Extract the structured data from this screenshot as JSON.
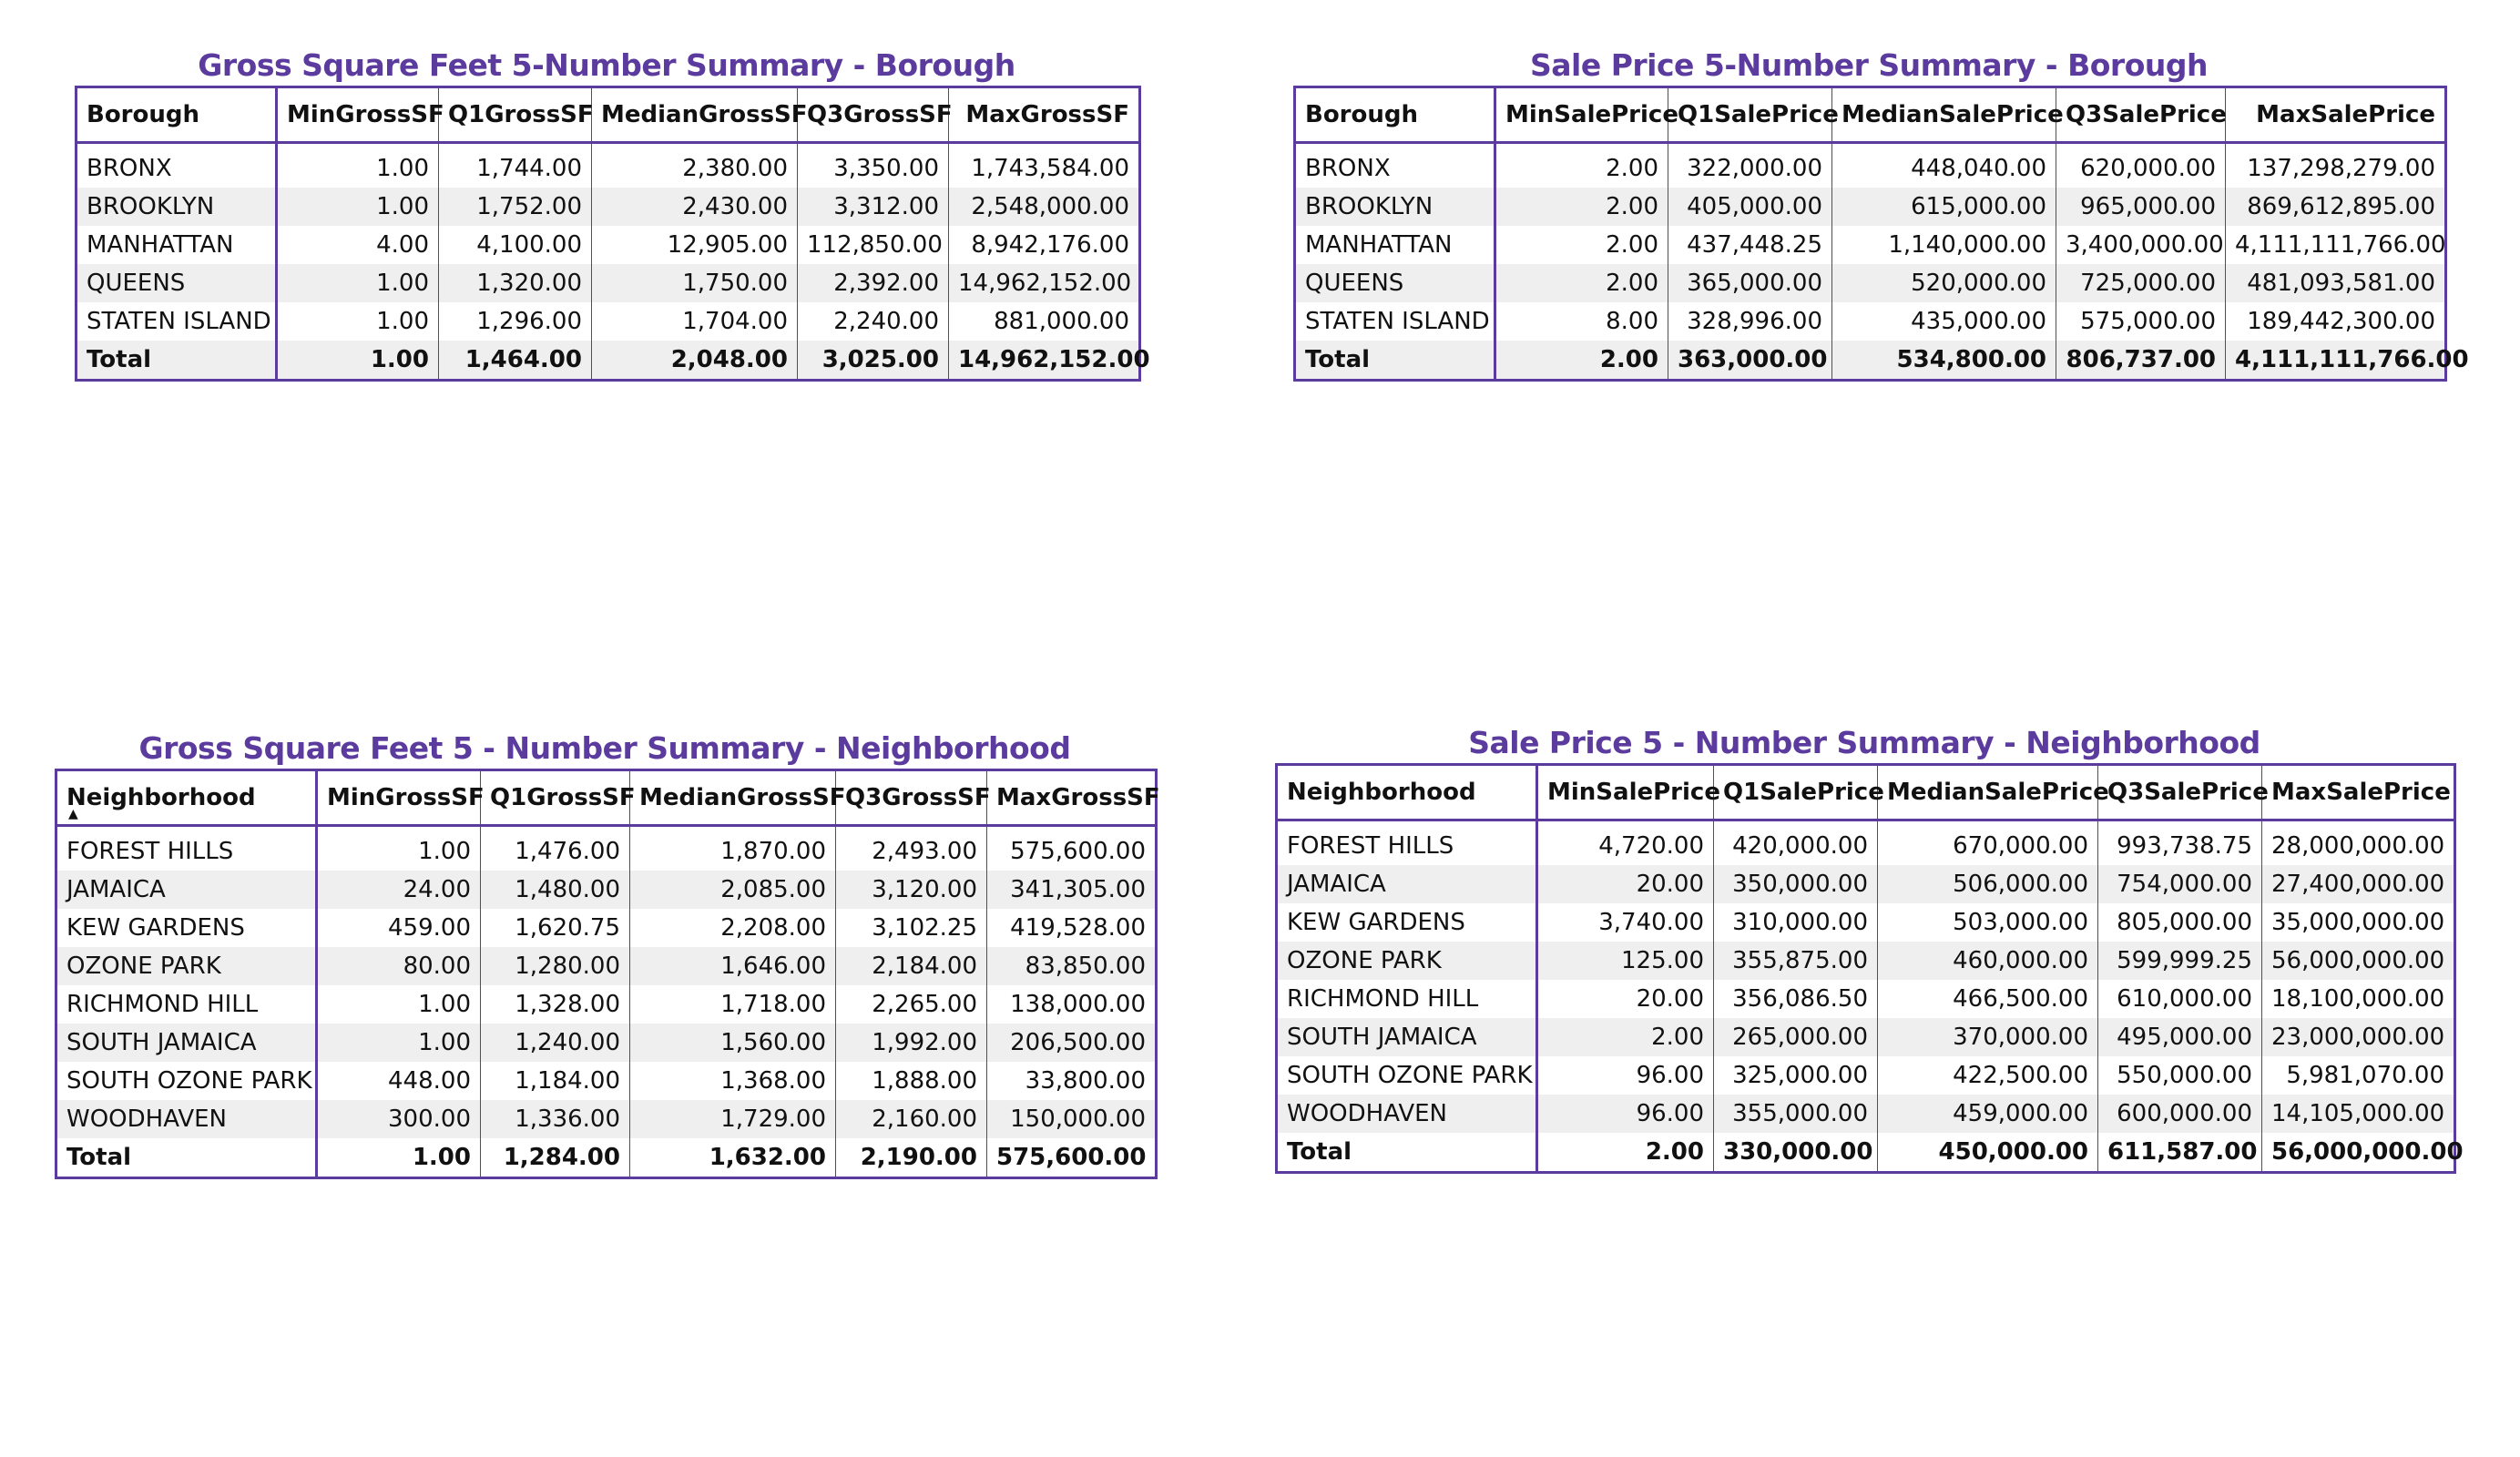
{
  "theme": {
    "accent": "#5b3b9e",
    "stripe": "#efefef"
  },
  "tables": {
    "gsf_borough": {
      "title": "Gross Square Feet 5-Number Summary - Borough",
      "headers": [
        "Borough",
        "MinGrossSF",
        "Q1GrossSF",
        "MedianGrossSF",
        "Q3GrossSF",
        "MaxGrossSF"
      ],
      "rows": [
        [
          "BRONX",
          "1.00",
          "1,744.00",
          "2,380.00",
          "3,350.00",
          "1,743,584.00"
        ],
        [
          "BROOKLYN",
          "1.00",
          "1,752.00",
          "2,430.00",
          "3,312.00",
          "2,548,000.00"
        ],
        [
          "MANHATTAN",
          "4.00",
          "4,100.00",
          "12,905.00",
          "112,850.00",
          "8,942,176.00"
        ],
        [
          "QUEENS",
          "1.00",
          "1,320.00",
          "1,750.00",
          "2,392.00",
          "14,962,152.00"
        ],
        [
          "STATEN ISLAND",
          "1.00",
          "1,296.00",
          "1,704.00",
          "2,240.00",
          "881,000.00"
        ]
      ],
      "total": [
        "Total",
        "1.00",
        "1,464.00",
        "2,048.00",
        "3,025.00",
        "14,962,152.00"
      ]
    },
    "price_borough": {
      "title": "Sale Price 5-Number Summary - Borough",
      "headers": [
        "Borough",
        "MinSalePrice",
        "Q1SalePrice",
        "MedianSalePrice",
        "Q3SalePrice",
        "MaxSalePrice"
      ],
      "rows": [
        [
          "BRONX",
          "2.00",
          "322,000.00",
          "448,040.00",
          "620,000.00",
          "137,298,279.00"
        ],
        [
          "BROOKLYN",
          "2.00",
          "405,000.00",
          "615,000.00",
          "965,000.00",
          "869,612,895.00"
        ],
        [
          "MANHATTAN",
          "2.00",
          "437,448.25",
          "1,140,000.00",
          "3,400,000.00",
          "4,111,111,766.00"
        ],
        [
          "QUEENS",
          "2.00",
          "365,000.00",
          "520,000.00",
          "725,000.00",
          "481,093,581.00"
        ],
        [
          "STATEN ISLAND",
          "8.00",
          "328,996.00",
          "435,000.00",
          "575,000.00",
          "189,442,300.00"
        ]
      ],
      "total": [
        "Total",
        "2.00",
        "363,000.00",
        "534,800.00",
        "806,737.00",
        "4,111,111,766.00"
      ]
    },
    "gsf_neighborhood": {
      "title": "Gross Square Feet 5 - Number Summary - Neighborhood",
      "headers": [
        "Neighborhood",
        "MinGrossSF",
        "Q1GrossSF",
        "MedianGrossSF",
        "Q3GrossSF",
        "MaxGrossSF"
      ],
      "sort_indicator": "▲",
      "rows": [
        [
          "FOREST HILLS",
          "1.00",
          "1,476.00",
          "1,870.00",
          "2,493.00",
          "575,600.00"
        ],
        [
          "JAMAICA",
          "24.00",
          "1,480.00",
          "2,085.00",
          "3,120.00",
          "341,305.00"
        ],
        [
          "KEW GARDENS",
          "459.00",
          "1,620.75",
          "2,208.00",
          "3,102.25",
          "419,528.00"
        ],
        [
          "OZONE PARK",
          "80.00",
          "1,280.00",
          "1,646.00",
          "2,184.00",
          "83,850.00"
        ],
        [
          "RICHMOND HILL",
          "1.00",
          "1,328.00",
          "1,718.00",
          "2,265.00",
          "138,000.00"
        ],
        [
          "SOUTH JAMAICA",
          "1.00",
          "1,240.00",
          "1,560.00",
          "1,992.00",
          "206,500.00"
        ],
        [
          "SOUTH OZONE PARK",
          "448.00",
          "1,184.00",
          "1,368.00",
          "1,888.00",
          "33,800.00"
        ],
        [
          "WOODHAVEN",
          "300.00",
          "1,336.00",
          "1,729.00",
          "2,160.00",
          "150,000.00"
        ]
      ],
      "total": [
        "Total",
        "1.00",
        "1,284.00",
        "1,632.00",
        "2,190.00",
        "575,600.00"
      ]
    },
    "price_neighborhood": {
      "title": "Sale Price 5 - Number Summary - Neighborhood",
      "headers": [
        "Neighborhood",
        "MinSalePrice",
        "Q1SalePrice",
        "MedianSalePrice",
        "Q3SalePrice",
        "MaxSalePrice"
      ],
      "rows": [
        [
          "FOREST HILLS",
          "4,720.00",
          "420,000.00",
          "670,000.00",
          "993,738.75",
          "28,000,000.00"
        ],
        [
          "JAMAICA",
          "20.00",
          "350,000.00",
          "506,000.00",
          "754,000.00",
          "27,400,000.00"
        ],
        [
          "KEW GARDENS",
          "3,740.00",
          "310,000.00",
          "503,000.00",
          "805,000.00",
          "35,000,000.00"
        ],
        [
          "OZONE PARK",
          "125.00",
          "355,875.00",
          "460,000.00",
          "599,999.25",
          "56,000,000.00"
        ],
        [
          "RICHMOND HILL",
          "20.00",
          "356,086.50",
          "466,500.00",
          "610,000.00",
          "18,100,000.00"
        ],
        [
          "SOUTH JAMAICA",
          "2.00",
          "265,000.00",
          "370,000.00",
          "495,000.00",
          "23,000,000.00"
        ],
        [
          "SOUTH OZONE PARK",
          "96.00",
          "325,000.00",
          "422,500.00",
          "550,000.00",
          "5,981,070.00"
        ],
        [
          "WOODHAVEN",
          "96.00",
          "355,000.00",
          "459,000.00",
          "600,000.00",
          "14,105,000.00"
        ]
      ],
      "total": [
        "Total",
        "2.00",
        "330,000.00",
        "450,000.00",
        "611,587.00",
        "56,000,000.00"
      ]
    }
  }
}
